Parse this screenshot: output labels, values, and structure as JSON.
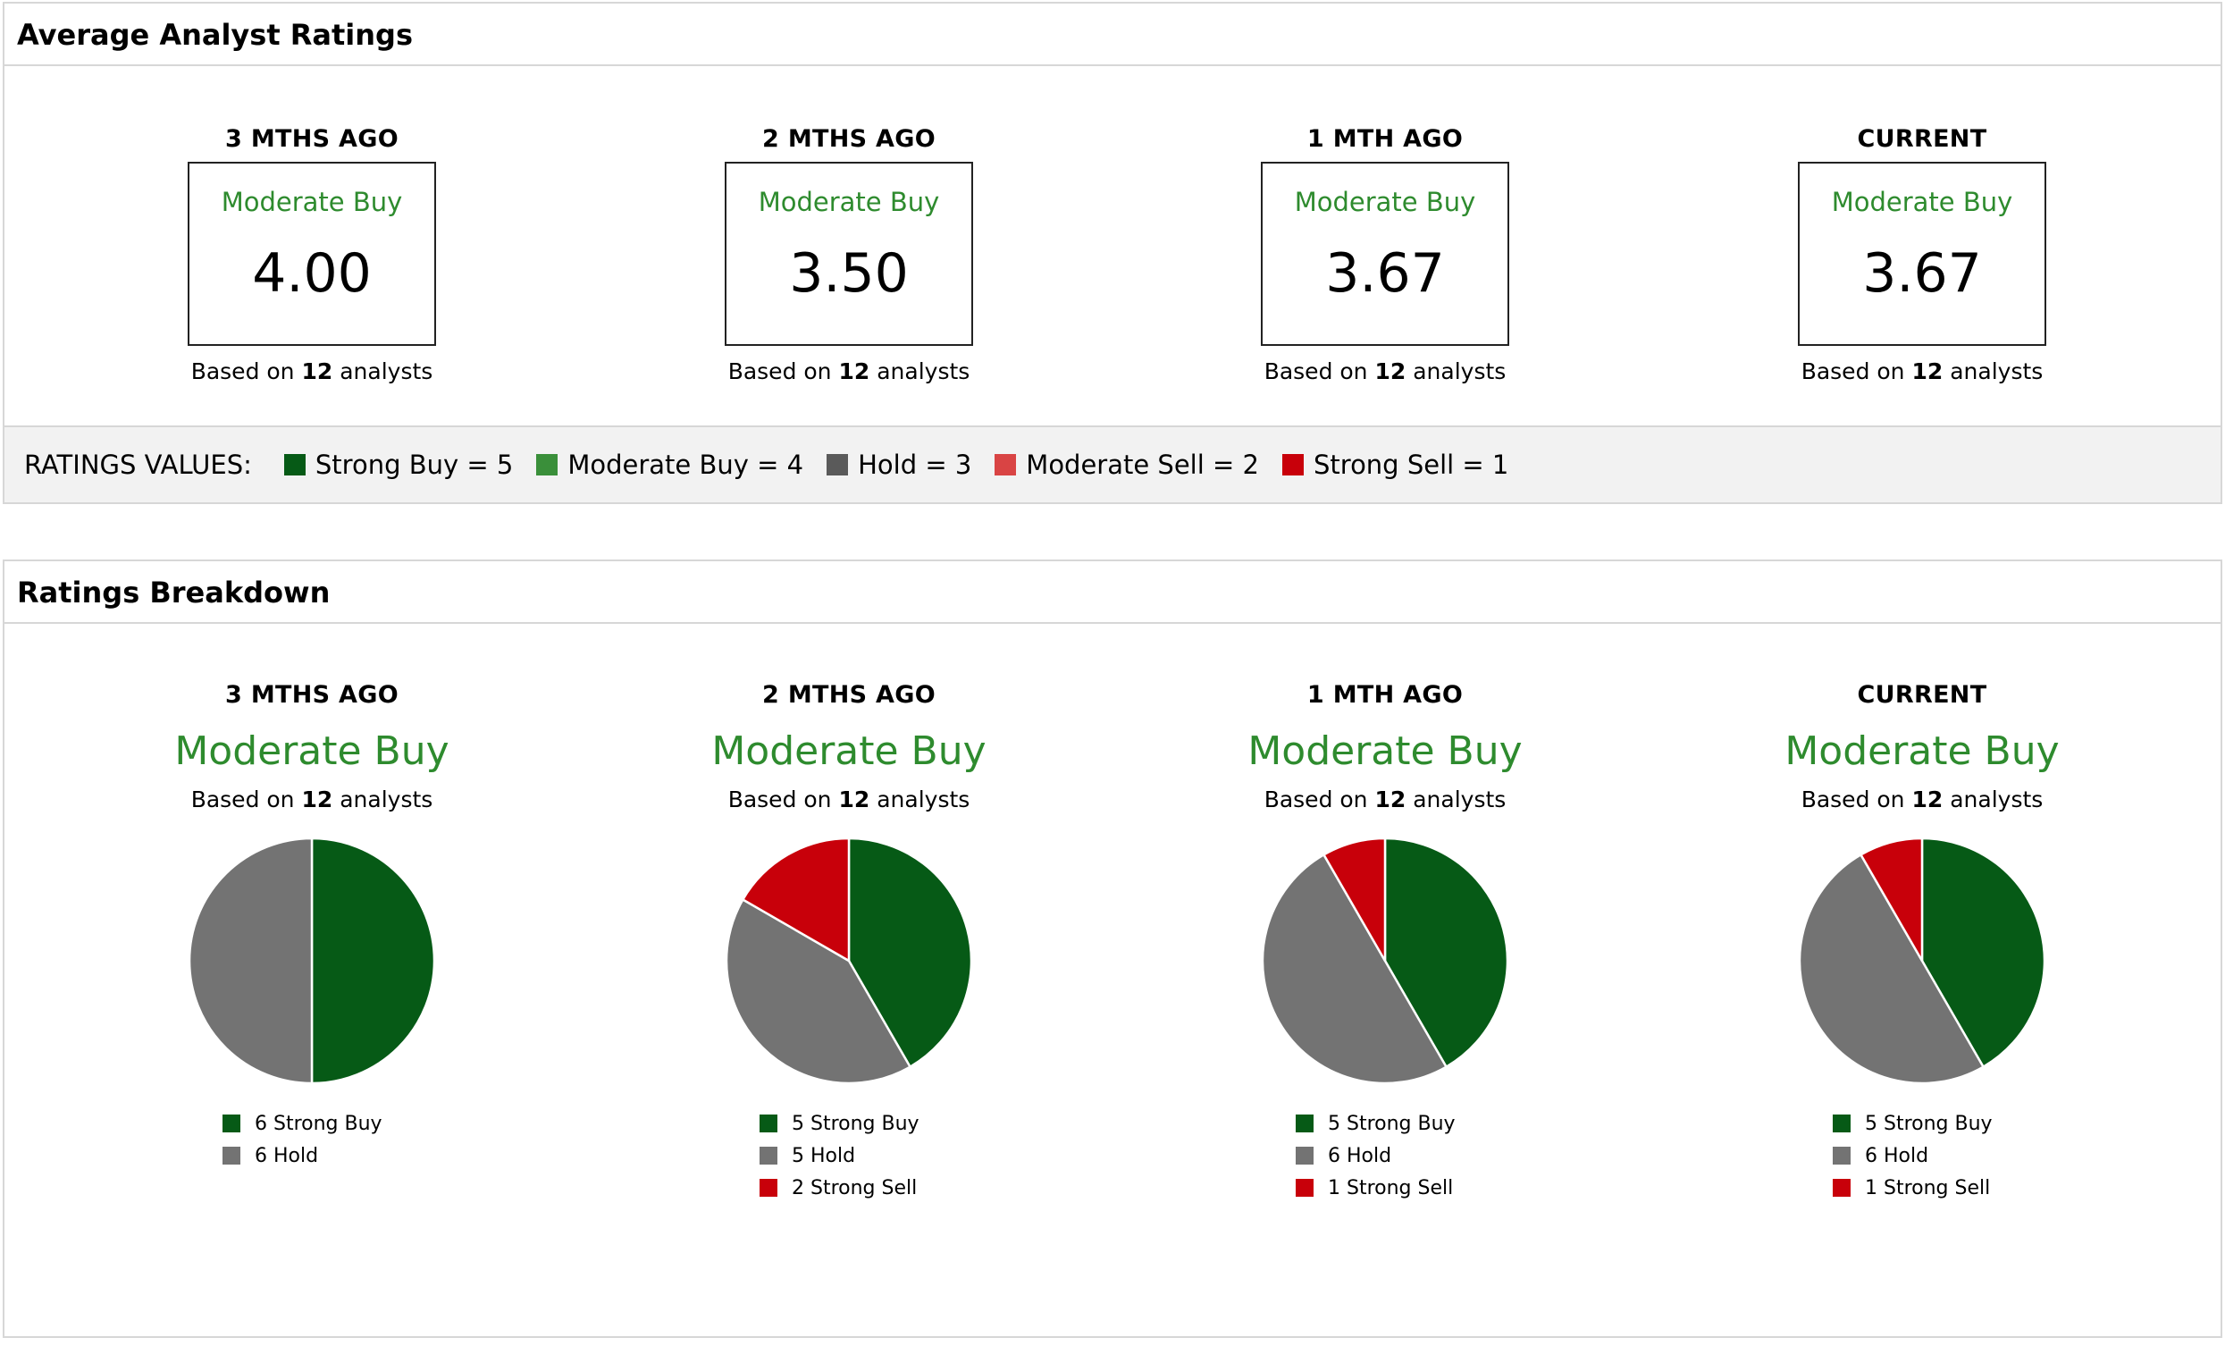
{
  "colors": {
    "strong_buy": "#065a16",
    "moderate_buy": "#3a8f3a",
    "hold": "#737373",
    "moderate_sell": "#d94444",
    "strong_sell": "#c8000a"
  },
  "average": {
    "title": "Average Analyst Ratings",
    "cards": [
      {
        "period": "3 MTHS AGO",
        "label": "Moderate Buy",
        "value": "4.00",
        "based_prefix": "Based on",
        "count": "12",
        "based_suffix": "analysts"
      },
      {
        "period": "2 MTHS AGO",
        "label": "Moderate Buy",
        "value": "3.50",
        "based_prefix": "Based on",
        "count": "12",
        "based_suffix": "analysts"
      },
      {
        "period": "1 MTH AGO",
        "label": "Moderate Buy",
        "value": "3.67",
        "based_prefix": "Based on",
        "count": "12",
        "based_suffix": "analysts"
      },
      {
        "period": "CURRENT",
        "label": "Moderate Buy",
        "value": "3.67",
        "based_prefix": "Based on",
        "count": "12",
        "based_suffix": "analysts"
      }
    ],
    "ratings_values": {
      "title": "RATINGS VALUES:",
      "items": [
        {
          "label": "Strong Buy = 5",
          "color": "#065a16"
        },
        {
          "label": "Moderate Buy = 4",
          "color": "#3a8f3a"
        },
        {
          "label": "Hold = 3",
          "color": "#5a5a5a"
        },
        {
          "label": "Moderate Sell = 2",
          "color": "#d94444"
        },
        {
          "label": "Strong Sell = 1",
          "color": "#c8000a"
        }
      ]
    }
  },
  "breakdown": {
    "title": "Ratings Breakdown",
    "chart_data": [
      {
        "type": "pie",
        "title": "3 MTHS AGO",
        "subtitle": "Moderate Buy",
        "based_prefix": "Based on",
        "count": "12",
        "based_suffix": "analysts",
        "slices": [
          {
            "label": "6 Strong Buy",
            "value": 6,
            "color": "#065a16"
          },
          {
            "label": "6 Hold",
            "value": 6,
            "color": "#737373"
          }
        ]
      },
      {
        "type": "pie",
        "title": "2 MTHS AGO",
        "subtitle": "Moderate Buy",
        "based_prefix": "Based on",
        "count": "12",
        "based_suffix": "analysts",
        "slices": [
          {
            "label": "5 Strong Buy",
            "value": 5,
            "color": "#065a16"
          },
          {
            "label": "5 Hold",
            "value": 5,
            "color": "#737373"
          },
          {
            "label": "2 Strong Sell",
            "value": 2,
            "color": "#c8000a"
          }
        ]
      },
      {
        "type": "pie",
        "title": "1 MTH AGO",
        "subtitle": "Moderate Buy",
        "based_prefix": "Based on",
        "count": "12",
        "based_suffix": "analysts",
        "slices": [
          {
            "label": "5 Strong Buy",
            "value": 5,
            "color": "#065a16"
          },
          {
            "label": "6 Hold",
            "value": 6,
            "color": "#737373"
          },
          {
            "label": "1 Strong Sell",
            "value": 1,
            "color": "#c8000a"
          }
        ]
      },
      {
        "type": "pie",
        "title": "CURRENT",
        "subtitle": "Moderate Buy",
        "based_prefix": "Based on",
        "count": "12",
        "based_suffix": "analysts",
        "slices": [
          {
            "label": "5 Strong Buy",
            "value": 5,
            "color": "#065a16"
          },
          {
            "label": "6 Hold",
            "value": 6,
            "color": "#737373"
          },
          {
            "label": "1 Strong Sell",
            "value": 1,
            "color": "#c8000a"
          }
        ]
      }
    ]
  }
}
